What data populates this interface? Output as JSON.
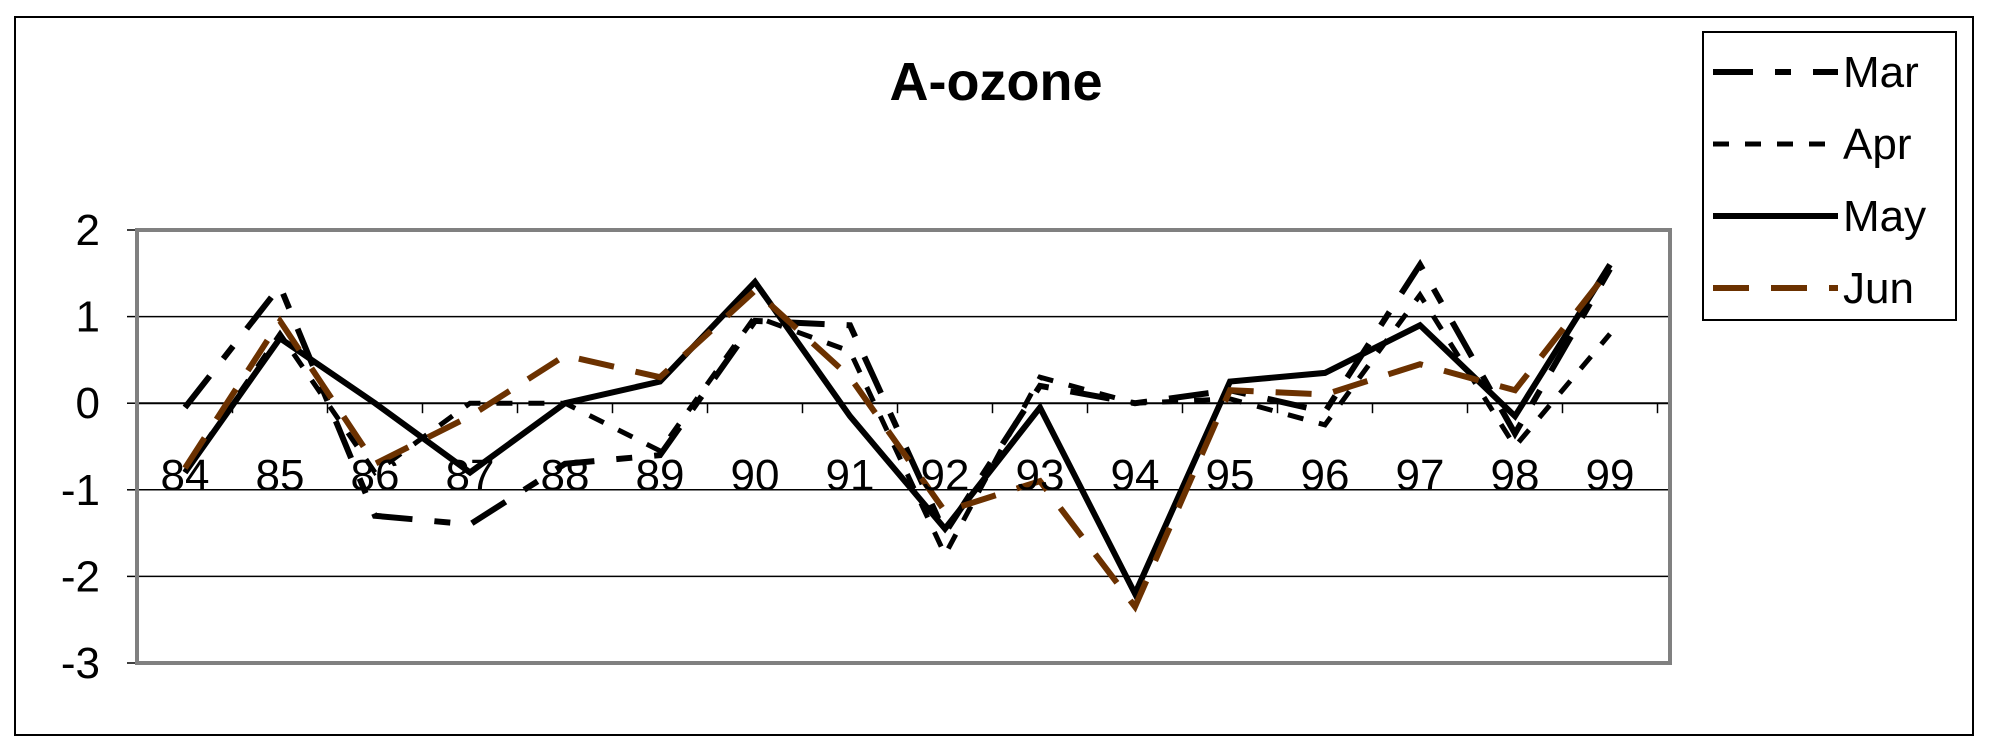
{
  "chart_data": {
    "type": "line",
    "title": "A-ozone",
    "xlabel": "",
    "ylabel": "",
    "ylim": [
      -3,
      2
    ],
    "yticks": [
      2,
      1,
      0,
      -1,
      -2,
      -3
    ],
    "grid": true,
    "legend_position": "top-right",
    "categories": [
      "84",
      "85",
      "86",
      "87",
      "88",
      "89",
      "90",
      "91",
      "92",
      "93",
      "94",
      "95",
      "96",
      "97",
      "98",
      "99"
    ],
    "series": [
      {
        "name": "Mar",
        "color": "#000000",
        "dash": "long-dash-short-dash",
        "values": [
          -0.05,
          1.35,
          -1.3,
          -1.4,
          -0.7,
          -0.6,
          0.95,
          0.9,
          -1.5,
          0.2,
          0.0,
          0.15,
          -0.1,
          1.6,
          -0.35,
          1.55
        ]
      },
      {
        "name": "Apr",
        "color": "#000000",
        "dash": "short-dash",
        "values": [
          -0.8,
          0.8,
          -0.8,
          0.0,
          0.0,
          -0.55,
          1.0,
          0.6,
          -1.75,
          0.3,
          0.0,
          0.05,
          -0.25,
          1.25,
          -0.5,
          0.8
        ]
      },
      {
        "name": "May",
        "color": "#000000",
        "dash": "solid",
        "values": [
          -0.8,
          0.75,
          0.0,
          -0.8,
          0.0,
          0.25,
          1.4,
          -0.15,
          -1.45,
          -0.05,
          -2.2,
          0.25,
          0.35,
          0.9,
          -0.15,
          1.6
        ]
      },
      {
        "name": "Jun",
        "color": "#6b3100",
        "dash": "long-dash",
        "values": [
          -0.75,
          0.95,
          -0.7,
          -0.15,
          0.55,
          0.3,
          1.3,
          0.3,
          -1.25,
          -0.9,
          -2.35,
          0.15,
          0.1,
          0.45,
          0.15,
          1.55
        ]
      }
    ]
  }
}
